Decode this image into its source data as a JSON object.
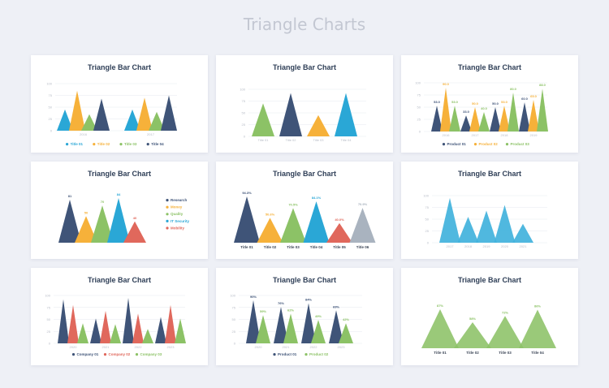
{
  "page_title": "Triangle Charts",
  "colors": {
    "navy": "#3f5478",
    "yellow": "#f6b13a",
    "green": "#8cc266",
    "blue": "#2aa7d6",
    "coral": "#e0685c",
    "gray": "#a9b3bf",
    "lightblue": "#41b2dc",
    "grid": "#e6e9ef",
    "tick": "#b7bcc6",
    "label": "#3b4556"
  },
  "chart_data": [
    {
      "type": "bar",
      "title": "Triangle Bar Chart",
      "ylim": [
        0,
        100
      ],
      "yticks": [
        "100",
        "75",
        "50",
        "25",
        "0"
      ],
      "categories": [
        "2016",
        "2017"
      ],
      "series": [
        {
          "name": "Title 01",
          "color": "blue",
          "values": [
            45,
            45
          ]
        },
        {
          "name": "Title 02",
          "color": "yellow",
          "values": [
            85,
            70
          ]
        },
        {
          "name": "Title 03",
          "color": "green",
          "values": [
            35,
            40
          ]
        },
        {
          "name": "Title 04",
          "color": "navy",
          "values": [
            68,
            75
          ]
        }
      ],
      "legend": "bottom"
    },
    {
      "type": "bar",
      "title": "Triangle Bar Chart",
      "ylim": [
        0,
        100
      ],
      "yticks": [
        "100",
        "75",
        "50",
        "25",
        "0"
      ],
      "categories": [
        "Title 01",
        "Title 02",
        "Title 03",
        "Title 04"
      ],
      "colors": [
        "green",
        "navy",
        "yellow",
        "blue"
      ],
      "values": [
        70,
        92,
        45,
        92
      ]
    },
    {
      "type": "bar",
      "title": "Triangle Bar Chart",
      "ylim": [
        0,
        100
      ],
      "yticks": [
        "100",
        "75",
        "50",
        "25",
        "0"
      ],
      "categories": [
        "2016",
        "2017",
        "2018",
        "2019"
      ],
      "series": [
        {
          "name": "Product 01",
          "color": "navy",
          "values": [
            53,
            33,
            50,
            60
          ]
        },
        {
          "name": "Product 02",
          "color": "yellow",
          "values": [
            90,
            50,
            53,
            65
          ]
        },
        {
          "name": "Product 03",
          "color": "green",
          "values": [
            53,
            40,
            80,
            88
          ]
        }
      ],
      "data_labels": [
        [
          "53.0",
          "90.0",
          "53.0"
        ],
        [
          "33.0",
          "50.0",
          "40.0"
        ],
        [
          "50.0",
          "53.0",
          "80.0"
        ],
        [
          "60.0",
          "65.0",
          "88.0"
        ]
      ],
      "legend": "bottom"
    },
    {
      "type": "bar",
      "title": "Triangle Bar Chart",
      "categories": [
        "Research",
        "Money",
        "Quality",
        "IT Security",
        "Mobility"
      ],
      "colors": [
        "navy",
        "yellow",
        "green",
        "blue",
        "coral"
      ],
      "values": [
        81,
        50,
        70,
        84,
        40
      ],
      "data_labels": [
        "81",
        "50",
        "70",
        "84",
        "40"
      ],
      "legend": "right"
    },
    {
      "type": "bar",
      "title": "Triangle Bar Chart",
      "categories": [
        "Title 01",
        "Title 02",
        "Title 03",
        "Title 04",
        "Title 05",
        "Title 06"
      ],
      "colors": [
        "navy",
        "yellow",
        "green",
        "blue",
        "coral",
        "gray"
      ],
      "values": [
        94.3,
        50.6,
        70.5,
        84.1,
        40.0,
        70.9
      ],
      "data_labels": [
        "94.3%",
        "50.6%",
        "70.5%",
        "84.1%",
        "40.0%",
        "70.9%"
      ]
    },
    {
      "type": "bar",
      "title": "Triangle Bar Chart",
      "ylim": [
        0,
        100
      ],
      "yticks": [
        "100",
        "75",
        "50",
        "25",
        "0"
      ],
      "categories": [
        "2017",
        "2018",
        "2019",
        "2020",
        "2021"
      ],
      "values": [
        95,
        55,
        68,
        80,
        40
      ],
      "color": "lightblue"
    },
    {
      "type": "bar",
      "title": "Triangle Bar Chart",
      "ylim": [
        0,
        100
      ],
      "yticks": [
        "100",
        "75",
        "50",
        "25",
        "0"
      ],
      "categories": [
        "2020",
        "2021",
        "2022",
        "2023"
      ],
      "series": [
        {
          "name": "Company 01",
          "color": "navy",
          "values": [
            92,
            52,
            95,
            55
          ]
        },
        {
          "name": "Company 02",
          "color": "coral",
          "values": [
            80,
            68,
            62,
            80
          ]
        },
        {
          "name": "Company 03",
          "color": "green",
          "values": [
            42,
            40,
            30,
            52
          ]
        }
      ],
      "legend": "bottom"
    },
    {
      "type": "bar",
      "title": "Triangle Bar Chart",
      "ylim": [
        0,
        100
      ],
      "yticks": [
        "100",
        "75",
        "50",
        "25",
        "0"
      ],
      "categories": [
        "2020",
        "2021",
        "2022",
        "2023"
      ],
      "series": [
        {
          "name": "Product 01",
          "color": "navy",
          "values": [
            90,
            76,
            84,
            69
          ]
        },
        {
          "name": "Product 02",
          "color": "green",
          "values": [
            59,
            62,
            49,
            42
          ]
        }
      ],
      "data_labels": [
        [
          "90%",
          "59%"
        ],
        [
          "76%",
          "62%"
        ],
        [
          "84%",
          "49%"
        ],
        [
          "69%",
          "42%"
        ]
      ],
      "legend": "bottom"
    },
    {
      "type": "bar",
      "title": "Triangle Bar Chart",
      "categories": [
        "Title 01",
        "Title 02",
        "Title 03",
        "Title 04"
      ],
      "color": "green",
      "values": [
        87,
        58,
        72,
        86
      ],
      "data_labels": [
        "87%",
        "58%",
        "72%",
        "86%"
      ]
    }
  ]
}
